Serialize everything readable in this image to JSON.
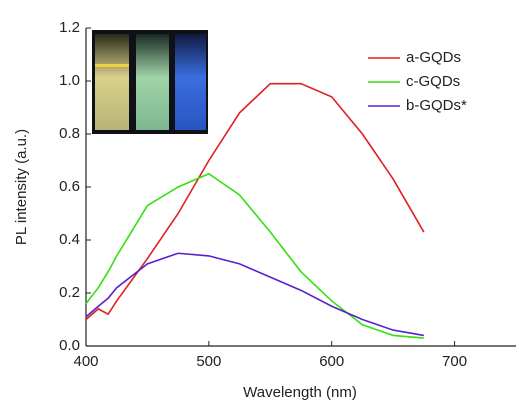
{
  "chart_data": {
    "type": "line",
    "x_label": "Wavelength (nm)",
    "y_label": "PL intensity (a.u.)",
    "x": [
      400,
      410,
      418,
      425,
      450,
      475,
      500,
      525,
      550,
      575,
      600,
      625,
      650,
      675
    ],
    "series": [
      {
        "name": "a-GQDs",
        "color": "#e02020",
        "values": [
          0.1,
          0.14,
          0.12,
          0.17,
          0.33,
          0.5,
          0.7,
          0.88,
          0.99,
          0.99,
          0.94,
          0.8,
          0.63,
          0.43
        ]
      },
      {
        "name": "c-GQDs",
        "color": "#33e010",
        "values": [
          0.16,
          0.22,
          0.28,
          0.34,
          0.53,
          0.6,
          0.65,
          0.57,
          0.43,
          0.28,
          0.17,
          0.08,
          0.04,
          0.03
        ]
      },
      {
        "name": "b-GQDs*",
        "color": "#5a20d0",
        "values": [
          0.11,
          0.15,
          0.18,
          0.22,
          0.31,
          0.35,
          0.34,
          0.31,
          0.26,
          0.21,
          0.15,
          0.1,
          0.06,
          0.04
        ]
      }
    ],
    "xlim": [
      400,
      750
    ],
    "xticks": [
      400,
      500,
      600,
      700
    ],
    "ylim": [
      0,
      1.2
    ],
    "yticks": [
      {
        "value": 0,
        "label": "0.0"
      },
      0.2,
      0.4,
      0.6,
      0.8,
      {
        "value": 1,
        "label": "1.0"
      },
      1.2
    ],
    "legend": "upper right"
  }
}
